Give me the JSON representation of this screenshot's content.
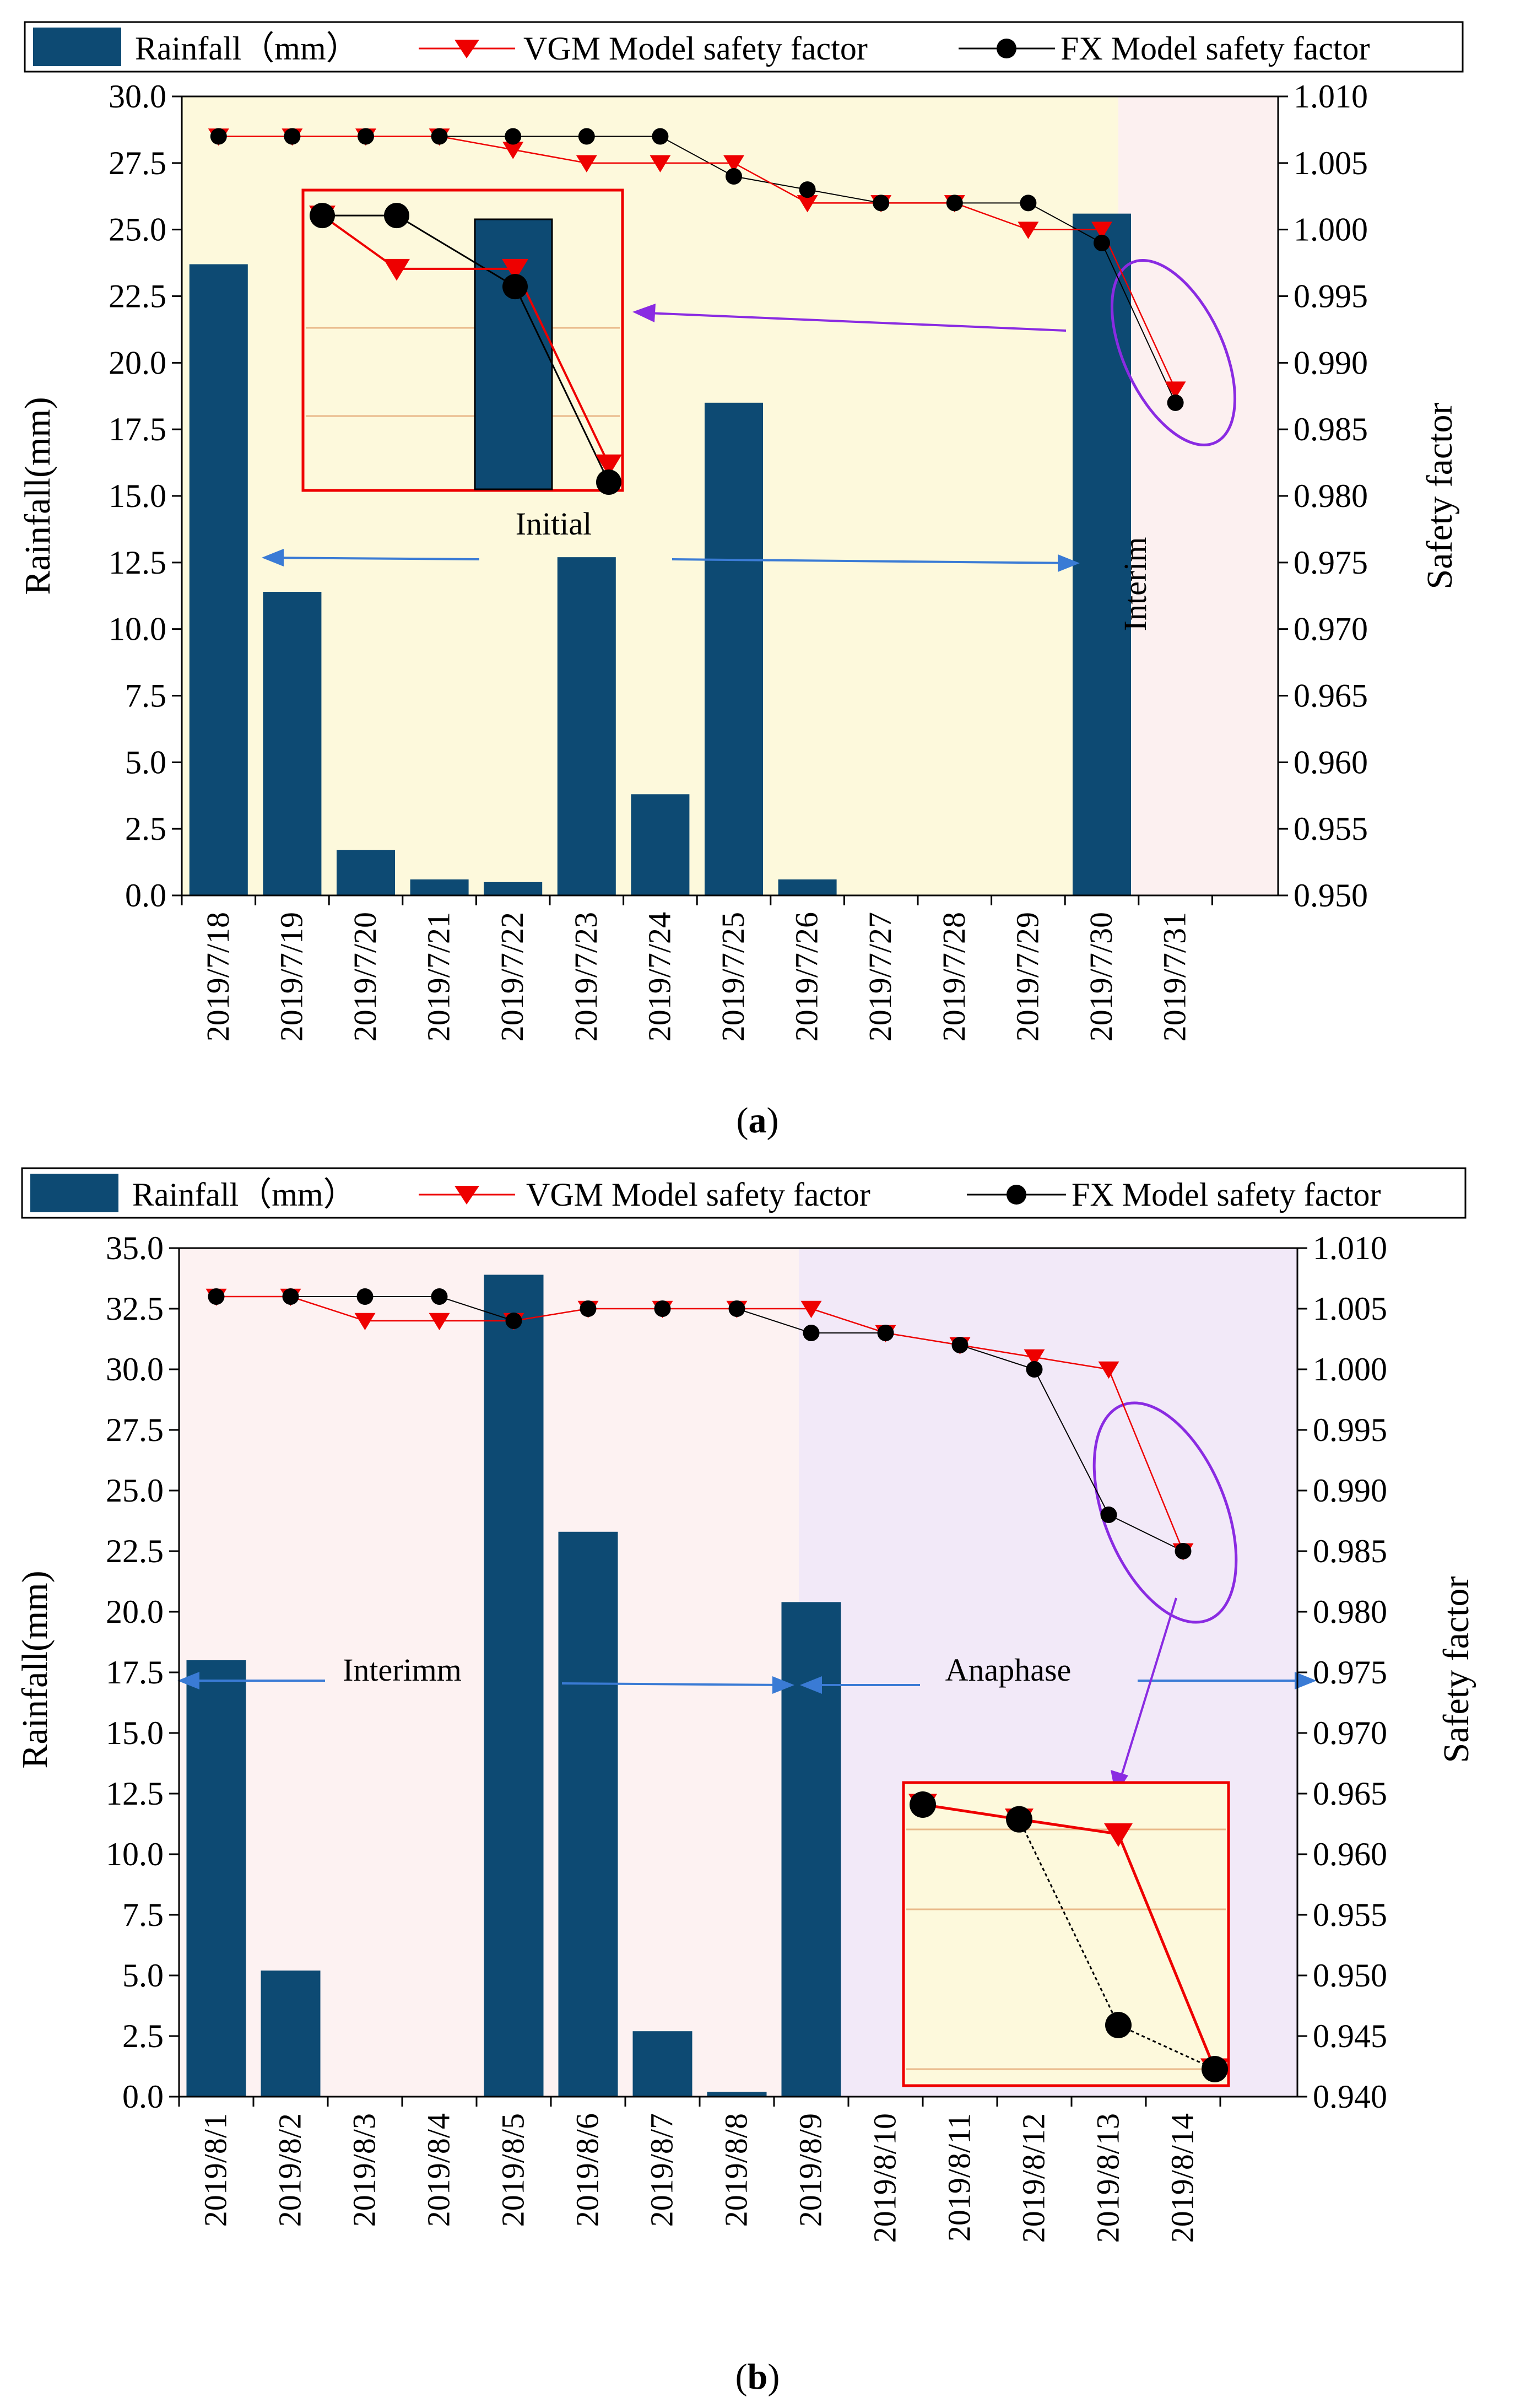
{
  "chart_data": [
    {
      "type": "bar",
      "panel_label": "a",
      "legend": {
        "rainfall": "Rainfall（mm）",
        "vgm": "VGM Model safety factor",
        "fx": "FX Model safety factor"
      },
      "categories": [
        "2019/7/18",
        "2019/7/19",
        "2019/7/20",
        "2019/7/21",
        "2019/7/22",
        "2019/7/23",
        "2019/7/24",
        "2019/7/25",
        "2019/7/26",
        "2019/7/27",
        "2019/7/28",
        "2019/7/29",
        "2019/7/30",
        "2019/7/31"
      ],
      "rainfall": [
        23.7,
        11.4,
        1.7,
        0.6,
        0.5,
        12.7,
        3.8,
        18.5,
        0.6,
        0,
        0,
        0,
        25.6,
        0
      ],
      "vgm": [
        1.007,
        1.007,
        1.007,
        1.007,
        1.006,
        1.005,
        1.005,
        1.005,
        1.002,
        1.002,
        1.002,
        1.0,
        1.0,
        0.988
      ],
      "fx": [
        1.007,
        1.007,
        1.007,
        1.007,
        1.007,
        1.007,
        1.007,
        1.004,
        1.003,
        1.002,
        1.002,
        1.002,
        0.999,
        0.987
      ],
      "ylabel": "Rainfall(mm)",
      "y2label": "Safety factor",
      "ylim": [
        0,
        30
      ],
      "yticks": [
        "0.0",
        "2.5",
        "5.0",
        "7.5",
        "10.0",
        "12.5",
        "15.0",
        "17.5",
        "20.0",
        "22.5",
        "25.0",
        "27.5",
        "30.0"
      ],
      "y2lim": [
        0.95,
        1.01
      ],
      "y2ticks": [
        "0.950",
        "0.955",
        "0.960",
        "0.965",
        "0.970",
        "0.975",
        "0.980",
        "0.985",
        "0.990",
        "0.995",
        "1.000",
        "1.005",
        "1.010"
      ],
      "phases": [
        {
          "label": "Initial",
          "from": 0,
          "to": 12.5,
          "color": "#fdf9dc"
        },
        {
          "label": "Interim",
          "from": 12.5,
          "to": 14,
          "color": "#fcf0f0"
        }
      ],
      "inset": {
        "rainfall": [
          0,
          25.6,
          0
        ],
        "vgm": [
          1.002,
          0.999,
          0.999,
          0.988
        ],
        "fx": [
          1.002,
          1.002,
          0.998,
          0.987
        ]
      }
    },
    {
      "type": "bar",
      "panel_label": "b",
      "legend": {
        "rainfall": "Rainfall（mm）",
        "vgm": "VGM Model safety factor",
        "fx": "FX Model safety factor"
      },
      "categories": [
        "2019/8/1",
        "2019/8/2",
        "2019/8/3",
        "2019/8/4",
        "2019/8/5",
        "2019/8/6",
        "2019/8/7",
        "2019/8/8",
        "2019/8/9",
        "2019/8/10",
        "2019/8/11",
        "2019/8/12",
        "2019/8/13",
        "2019/8/14"
      ],
      "rainfall": [
        18.0,
        5.2,
        0,
        0,
        33.9,
        23.3,
        2.7,
        0.2,
        20.4,
        0,
        0,
        0,
        0,
        0
      ],
      "vgm": [
        1.006,
        1.006,
        1.004,
        1.004,
        1.004,
        1.005,
        1.005,
        1.005,
        1.005,
        1.003,
        1.002,
        1.001,
        1.0,
        0.985
      ],
      "fx": [
        1.006,
        1.006,
        1.006,
        1.006,
        1.004,
        1.005,
        1.005,
        1.005,
        1.003,
        1.003,
        1.002,
        1.0,
        0.988,
        0.985
      ],
      "ylabel": "Rainfall(mm)",
      "y2label": "Safety factor",
      "ylim": [
        0,
        35
      ],
      "yticks": [
        "0.0",
        "2.5",
        "5.0",
        "7.5",
        "10.0",
        "12.5",
        "15.0",
        "17.5",
        "20.0",
        "22.5",
        "25.0",
        "27.5",
        "30.0",
        "32.5",
        "35.0"
      ],
      "y2lim": [
        0.94,
        1.01
      ],
      "y2ticks": [
        "0.940",
        "0.945",
        "0.950",
        "0.955",
        "0.960",
        "0.965",
        "0.970",
        "0.975",
        "0.980",
        "0.985",
        "0.990",
        "0.995",
        "1.000",
        "1.005",
        "1.010"
      ],
      "phases": [
        {
          "label": "Interimm",
          "from": 0,
          "to": 7.75,
          "color": "#fdf2f2"
        },
        {
          "label": "Anaphase",
          "from": 7.75,
          "to": 14,
          "color": "#f2e9f8"
        }
      ],
      "inset": {
        "vgm": [
          1.003,
          1.002,
          1.001,
          0.985
        ],
        "fx": [
          1.003,
          1.002,
          0.988,
          0.985
        ]
      }
    }
  ]
}
